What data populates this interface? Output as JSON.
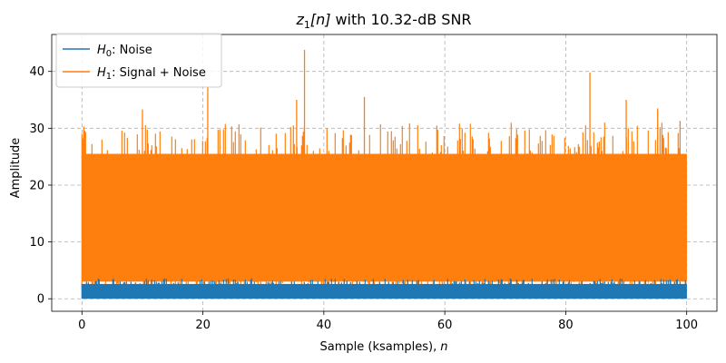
{
  "chart_data": {
    "type": "line",
    "title": {
      "symbol": "z",
      "subscript": "1",
      "index": "[n]",
      "suffix": "with 10.32-dB SNR"
    },
    "xlabel": {
      "text": "Sample (ksamples),",
      "var": "n"
    },
    "ylabel": "Amplitude",
    "xlim": [
      -5,
      105
    ],
    "ylim": [
      -2.2,
      46.5
    ],
    "xticks": [
      0,
      20,
      40,
      60,
      80,
      100
    ],
    "yticks": [
      0,
      10,
      20,
      30,
      40
    ],
    "grid": true,
    "grid_style": "dashed",
    "legend_position": "top-left",
    "series": [
      {
        "name": "Noise",
        "name_prefix": "H",
        "name_subscript": "0",
        "color": "#1f77b4",
        "style": "dense-noise",
        "band_low": 0.0,
        "band_high": 2.6,
        "typical_max": 3.6,
        "occasional_min": 0.0
      },
      {
        "name": "Signal + Noise",
        "name_prefix": "H",
        "name_subscript": "1",
        "color": "#ff7f0e",
        "style": "dense-noise",
        "band_low": 3.0,
        "band_high": 25.5,
        "typical_max": 31.0,
        "occasional_min": 0.3,
        "peaks": [
          {
            "x": 0.3,
            "y": 30.3
          },
          {
            "x": 10.0,
            "y": 33.3
          },
          {
            "x": 20.8,
            "y": 37.2
          },
          {
            "x": 35.5,
            "y": 35.0
          },
          {
            "x": 36.8,
            "y": 43.8
          },
          {
            "x": 46.7,
            "y": 35.5
          },
          {
            "x": 84.0,
            "y": 39.8
          },
          {
            "x": 90.0,
            "y": 35.0
          },
          {
            "x": 95.2,
            "y": 33.5
          },
          {
            "x": 98.9,
            "y": 31.3
          }
        ]
      }
    ]
  }
}
